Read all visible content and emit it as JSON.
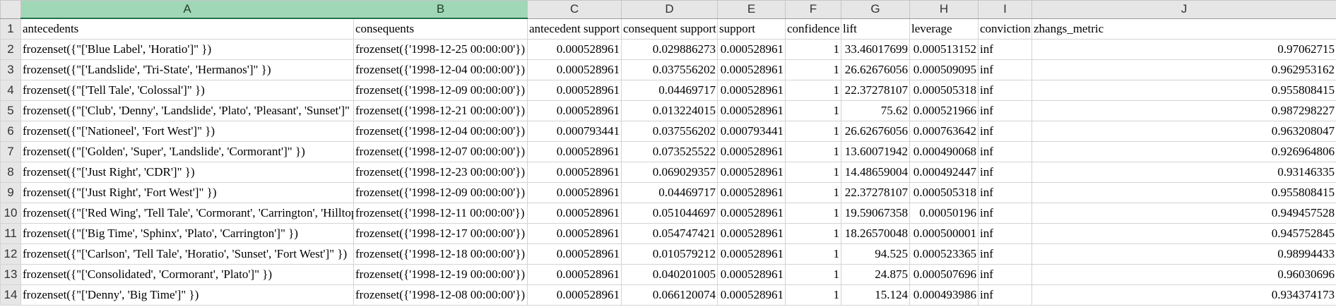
{
  "sheet": {
    "selected_columns": [
      "A",
      "B"
    ],
    "column_letters": [
      "A",
      "B",
      "C",
      "D",
      "E",
      "F",
      "G",
      "H",
      "I",
      "J"
    ],
    "rows": [
      {
        "row_number": "1",
        "cells": [
          "antecedents",
          "consequents",
          "antecedent support",
          "consequent support",
          "support",
          "confidence",
          "lift",
          "leverage",
          "conviction",
          "zhangs_metric"
        ]
      },
      {
        "row_number": "2",
        "cells": [
          "frozenset({\"['Blue Label', 'Horatio']\" })",
          "frozenset({'1998-12-25 00:00:00'})",
          "0.000528961",
          "0.029886273",
          "0.000528961",
          "1",
          "33.46017699",
          "0.000513152",
          "inf",
          "0.97062715"
        ]
      },
      {
        "row_number": "3",
        "cells": [
          "frozenset({\"['Landslide', 'Tri-State', 'Hermanos']\" })",
          "frozenset({'1998-12-04 00:00:00'})",
          "0.000528961",
          "0.037556202",
          "0.000528961",
          "1",
          "26.62676056",
          "0.000509095",
          "inf",
          "0.962953162"
        ]
      },
      {
        "row_number": "4",
        "cells": [
          "frozenset({\"['Tell Tale', 'Colossal']\" })",
          "frozenset({'1998-12-09 00:00:00'})",
          "0.000528961",
          "0.04469717",
          "0.000528961",
          "1",
          "22.37278107",
          "0.000505318",
          "inf",
          "0.955808415"
        ]
      },
      {
        "row_number": "5",
        "cells": [
          "frozenset({\"['Club', 'Denny', 'Landslide', 'Plato', 'Pleasant', 'Sunset']\" })",
          "frozenset({'1998-12-21 00:00:00'})",
          "0.000528961",
          "0.013224015",
          "0.000528961",
          "1",
          "75.62",
          "0.000521966",
          "inf",
          "0.987298227"
        ]
      },
      {
        "row_number": "6",
        "cells": [
          "frozenset({\"['Nationeel', 'Fort West']\" })",
          "frozenset({'1998-12-04 00:00:00'})",
          "0.000793441",
          "0.037556202",
          "0.000793441",
          "1",
          "26.62676056",
          "0.000763642",
          "inf",
          "0.963208047"
        ]
      },
      {
        "row_number": "7",
        "cells": [
          "frozenset({\"['Golden', 'Super', 'Landslide', 'Cormorant']\" })",
          "frozenset({'1998-12-07 00:00:00'})",
          "0.000528961",
          "0.073525522",
          "0.000528961",
          "1",
          "13.60071942",
          "0.000490068",
          "inf",
          "0.926964806"
        ]
      },
      {
        "row_number": "8",
        "cells": [
          "frozenset({\"['Just Right', 'CDR']\" })",
          "frozenset({'1998-12-23 00:00:00'})",
          "0.000528961",
          "0.069029357",
          "0.000528961",
          "1",
          "14.48659004",
          "0.000492447",
          "inf",
          "0.93146335"
        ]
      },
      {
        "row_number": "9",
        "cells": [
          "frozenset({\"['Just Right', 'Fort West']\" })",
          "frozenset({'1998-12-09 00:00:00'})",
          "0.000528961",
          "0.04469717",
          "0.000528961",
          "1",
          "22.37278107",
          "0.000505318",
          "inf",
          "0.955808415"
        ]
      },
      {
        "row_number": "10",
        "cells": [
          "frozenset({\"['Red Wing', 'Tell Tale', 'Cormorant', 'Carrington', 'Hilltop']\" })",
          "frozenset({'1998-12-11 00:00:00'})",
          "0.000528961",
          "0.051044697",
          "0.000528961",
          "1",
          "19.59067358",
          "0.00050196",
          "inf",
          "0.949457528"
        ]
      },
      {
        "row_number": "11",
        "cells": [
          "frozenset({\"['Big Time', 'Sphinx', 'Plato', 'Carrington']\" })",
          "frozenset({'1998-12-17 00:00:00'})",
          "0.000528961",
          "0.054747421",
          "0.000528961",
          "1",
          "18.26570048",
          "0.000500001",
          "inf",
          "0.945752845"
        ]
      },
      {
        "row_number": "12",
        "cells": [
          "frozenset({\"['Carlson', 'Tell Tale', 'Horatio', 'Sunset', 'Fort West']\" })",
          "frozenset({'1998-12-18 00:00:00'})",
          "0.000528961",
          "0.010579212",
          "0.000528961",
          "1",
          "94.525",
          "0.000523365",
          "inf",
          "0.98994433"
        ]
      },
      {
        "row_number": "13",
        "cells": [
          "frozenset({\"['Consolidated', 'Cormorant', 'Plato']\" })",
          "frozenset({'1998-12-19 00:00:00'})",
          "0.000528961",
          "0.040201005",
          "0.000528961",
          "1",
          "24.875",
          "0.000507696",
          "inf",
          "0.96030696"
        ]
      },
      {
        "row_number": "14",
        "cells": [
          "frozenset({\"['Denny', 'Big Time']\" })",
          "frozenset({'1998-12-08 00:00:00'})",
          "0.000528961",
          "0.066120074",
          "0.000528961",
          "1",
          "15.124",
          "0.000493986",
          "inf",
          "0.934374173"
        ]
      }
    ]
  }
}
